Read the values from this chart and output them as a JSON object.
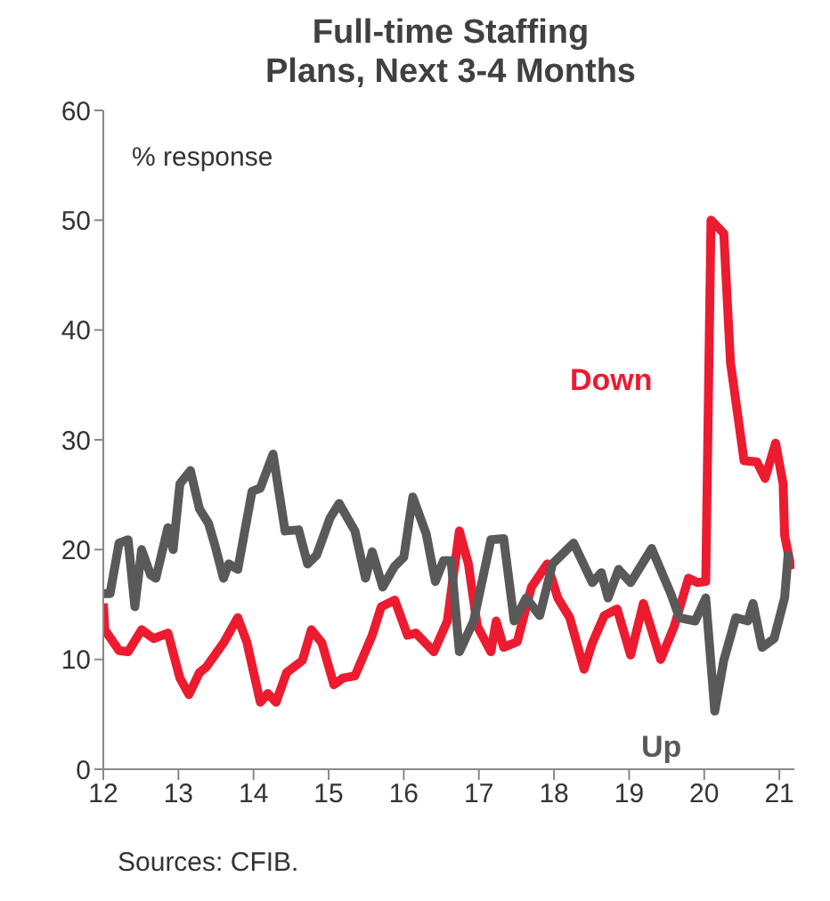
{
  "chart_data": {
    "type": "line",
    "title": "Full-time Staffing Plans, Next 3-4 Months",
    "ylabel": "% response",
    "annotations": [
      "Sources: CFIB."
    ],
    "xlim": [
      12,
      21.2
    ],
    "xticks": [
      12,
      13,
      14,
      15,
      16,
      17,
      18,
      19,
      20,
      21
    ],
    "ylim": [
      0,
      60
    ],
    "yticks": [
      0,
      10,
      20,
      30,
      40,
      50,
      60
    ],
    "marker": "none",
    "line_style": "solid",
    "series": [
      {
        "name": "Down",
        "color": "#ed1b2f",
        "x": [
          12.0,
          12.02,
          12.21,
          12.33,
          12.51,
          12.67,
          12.86,
          13.02,
          13.14,
          13.28,
          13.37,
          13.6,
          13.79,
          13.91,
          14.09,
          14.19,
          14.3,
          14.44,
          14.65,
          14.77,
          14.91,
          15.07,
          15.19,
          15.35,
          15.58,
          15.7,
          15.88,
          16.05,
          16.16,
          16.4,
          16.58,
          16.74,
          16.86,
          16.98,
          17.16,
          17.23,
          17.33,
          17.51,
          17.7,
          17.91,
          18.05,
          18.21,
          18.4,
          18.51,
          18.67,
          18.84,
          19.02,
          19.19,
          19.42,
          19.6,
          19.79,
          19.91,
          20.02,
          20.09,
          20.26,
          20.35,
          20.53,
          20.7,
          20.81,
          20.95,
          21.05,
          21.07,
          21.16
        ],
        "values": [
          15.1,
          12.7,
          10.8,
          10.7,
          12.7,
          11.9,
          12.4,
          8.3,
          6.8,
          8.8,
          9.3,
          11.5,
          13.8,
          11.6,
          6.1,
          6.9,
          6.1,
          8.8,
          9.9,
          12.7,
          11.5,
          7.7,
          8.3,
          8.5,
          12.2,
          14.8,
          15.4,
          12.2,
          12.4,
          10.7,
          13.5,
          21.7,
          18.7,
          13,
          10.7,
          13.5,
          11.1,
          11.6,
          16.6,
          18.7,
          15.6,
          13.8,
          9.1,
          11.5,
          14,
          14.6,
          10.4,
          15.1,
          10,
          13,
          17.4,
          17,
          17.1,
          50,
          48.8,
          37,
          28.1,
          28,
          26.5,
          29.7,
          26,
          21.3,
          18.2
        ]
      },
      {
        "name": "Up",
        "color": "#595959",
        "x": [
          12.0,
          12.09,
          12.21,
          12.33,
          12.42,
          12.51,
          12.63,
          12.7,
          12.86,
          12.93,
          13.02,
          13.16,
          13.28,
          13.4,
          13.49,
          13.6,
          13.67,
          13.79,
          13.98,
          14.09,
          14.26,
          14.42,
          14.6,
          14.72,
          14.84,
          15.02,
          15.14,
          15.35,
          15.49,
          15.58,
          15.72,
          15.88,
          16.0,
          16.12,
          16.3,
          16.42,
          16.53,
          16.63,
          16.74,
          16.93,
          17.16,
          17.33,
          17.47,
          17.63,
          17.81,
          17.98,
          18.26,
          18.51,
          18.63,
          18.72,
          18.86,
          19.02,
          19.3,
          19.56,
          19.67,
          19.88,
          20.02,
          20.14,
          20.26,
          20.42,
          20.58,
          20.65,
          20.77,
          20.93,
          21.07,
          21.12
        ],
        "values": [
          16,
          16,
          20.6,
          20.9,
          14.8,
          20,
          17.7,
          17.4,
          22,
          20,
          26,
          27.2,
          23.7,
          22.4,
          20.3,
          17.4,
          18.7,
          18.2,
          25.3,
          25.6,
          28.7,
          21.7,
          21.8,
          18.7,
          19.5,
          22.9,
          24.2,
          21.7,
          17.4,
          19.8,
          16.6,
          18.5,
          19.3,
          24.8,
          21.4,
          17.1,
          19,
          19,
          10.7,
          13.5,
          20.9,
          21,
          13.5,
          15.6,
          14,
          18.7,
          20.6,
          17,
          17.9,
          15.6,
          18.2,
          17,
          20.1,
          15.9,
          13.8,
          13.5,
          15.6,
          5.3,
          9.9,
          13.8,
          13.5,
          15.1,
          11.1,
          11.9,
          15.6,
          19.8
        ]
      }
    ]
  }
}
